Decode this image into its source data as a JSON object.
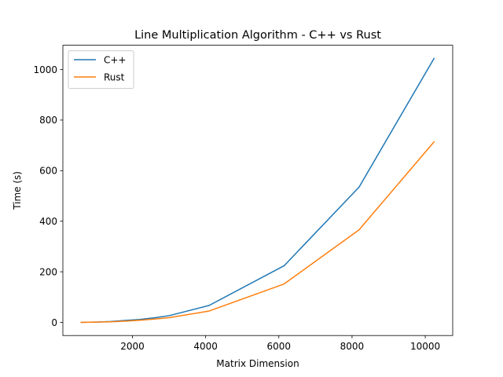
{
  "chart_data": {
    "type": "line",
    "title": "Line Multiplication Algorithm - C++ vs Rust",
    "xlabel": "Matrix Dimension",
    "ylabel": "Time (s)",
    "xlim": [
      100,
      10750
    ],
    "ylim": [
      -52,
      1096
    ],
    "x_ticks": [
      2000,
      4000,
      6000,
      8000,
      10000
    ],
    "y_ticks": [
      0,
      200,
      400,
      600,
      800,
      1000
    ],
    "grid": false,
    "legend_position": "upper-left",
    "x": [
      600,
      1000,
      1400,
      1800,
      2200,
      2600,
      3000,
      4096,
      6144,
      8192,
      10240
    ],
    "series": [
      {
        "name": "C++",
        "color": "#1f77b4",
        "values": [
          0.2,
          1.2,
          3.3,
          7.5,
          11.5,
          18.0,
          26.5,
          67.0,
          224.0,
          535.0,
          1044.0
        ]
      },
      {
        "name": "Rust",
        "color": "#ff7f0e",
        "values": [
          0.1,
          0.9,
          2.4,
          5.0,
          8.5,
          13.0,
          18.5,
          45.0,
          152.0,
          366.0,
          714.0
        ]
      }
    ]
  }
}
